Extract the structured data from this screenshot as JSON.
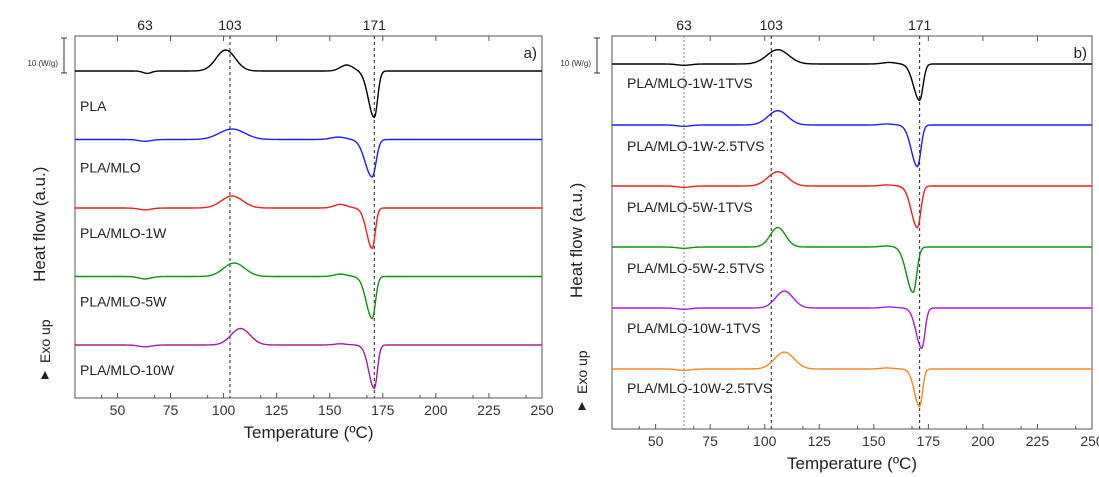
{
  "chart_data": [
    {
      "type": "line",
      "panel_tag": "a)",
      "xlabel": "Temperature (ºC)",
      "ylabel": "Heat flow (a.u.)",
      "exo_label": "Exo up",
      "scale_label": "10 (W/g)",
      "xlim": [
        30,
        250
      ],
      "xticks": [
        50,
        75,
        100,
        125,
        150,
        175,
        200,
        225,
        250
      ],
      "reference_lines": [
        {
          "label": "63",
          "x": 63,
          "dashed": false
        },
        {
          "label": "103",
          "x": 103,
          "dashed": true
        },
        {
          "label": "171",
          "x": 171,
          "dashed": true
        }
      ],
      "series": [
        {
          "name": "PLA",
          "color": "#000000",
          "baseline": 0,
          "features": [
            {
              "type": "dip",
              "x": 64,
              "height": -0.08,
              "width": 2
            },
            {
              "type": "peak",
              "x": 101,
              "height": 0.7,
              "width": 4.5
            },
            {
              "type": "peak",
              "x": 158,
              "height": 0.2,
              "width": 3
            },
            {
              "type": "dip",
              "x": 171,
              "height": -1.55,
              "width": 2.8
            }
          ]
        },
        {
          "name": "PLA/MLO",
          "color": "#1f1fef",
          "baseline": 0,
          "features": [
            {
              "type": "dip",
              "x": 63,
              "height": -0.06,
              "width": 3
            },
            {
              "type": "peak",
              "x": 104,
              "height": 0.35,
              "width": 6
            },
            {
              "type": "peak",
              "x": 154,
              "height": 0.08,
              "width": 3.5
            },
            {
              "type": "dip",
              "x": 170,
              "height": -1.25,
              "width": 3.3
            }
          ]
        },
        {
          "name": "PLA/MLO-1W",
          "color": "#ef1f1f",
          "baseline": 0,
          "features": [
            {
              "type": "dip",
              "x": 63,
              "height": -0.06,
              "width": 3
            },
            {
              "type": "peak",
              "x": 104,
              "height": 0.4,
              "width": 5
            },
            {
              "type": "peak",
              "x": 155,
              "height": 0.12,
              "width": 3
            },
            {
              "type": "dip",
              "x": 170,
              "height": -1.35,
              "width": 2.6
            }
          ]
        },
        {
          "name": "PLA/MLO-5W",
          "color": "#109010",
          "baseline": 0,
          "features": [
            {
              "type": "dip",
              "x": 63,
              "height": -0.08,
              "width": 3
            },
            {
              "type": "peak",
              "x": 105,
              "height": 0.45,
              "width": 5
            },
            {
              "type": "peak",
              "x": 155,
              "height": 0.08,
              "width": 3
            },
            {
              "type": "dip",
              "x": 170,
              "height": -1.4,
              "width": 2.8
            }
          ]
        },
        {
          "name": "PLA/MLO-10W",
          "color": "#a020a0",
          "baseline": 0,
          "features": [
            {
              "type": "dip",
              "x": 63,
              "height": -0.06,
              "width": 3
            },
            {
              "type": "peak",
              "x": 108,
              "height": 0.55,
              "width": 4.5
            },
            {
              "type": "peak",
              "x": 155,
              "height": 0.04,
              "width": 3
            },
            {
              "type": "dip",
              "x": 171,
              "height": -1.45,
              "width": 2.6
            }
          ]
        }
      ]
    },
    {
      "type": "line",
      "panel_tag": "b)",
      "xlabel": "Temperature (ºC)",
      "ylabel": "Heat flow (a.u.)",
      "exo_label": "Exo up",
      "scale_label": "10 (W/g)",
      "xlim": [
        30,
        250
      ],
      "xticks": [
        50,
        75,
        100,
        125,
        150,
        175,
        200,
        225,
        250
      ],
      "reference_lines": [
        {
          "label": "63",
          "x": 63,
          "dashed": true
        },
        {
          "label": "103",
          "x": 103,
          "dashed": true
        },
        {
          "label": "171",
          "x": 171,
          "dashed": true
        }
      ],
      "series": [
        {
          "name": "PLA/MLO-1W-1TVS",
          "color": "#000000",
          "baseline": 0,
          "features": [
            {
              "type": "dip",
              "x": 63,
              "height": -0.05,
              "width": 3
            },
            {
              "type": "peak",
              "x": 106,
              "height": 0.55,
              "width": 5
            },
            {
              "type": "peak",
              "x": 157,
              "height": 0.06,
              "width": 3
            },
            {
              "type": "dip",
              "x": 171,
              "height": -1.4,
              "width": 2.8
            }
          ]
        },
        {
          "name": "PLA/MLO-1W-2.5TVS",
          "color": "#1f1fef",
          "baseline": 0,
          "features": [
            {
              "type": "dip",
              "x": 63,
              "height": -0.05,
              "width": 3
            },
            {
              "type": "peak",
              "x": 106,
              "height": 0.55,
              "width": 4.5
            },
            {
              "type": "peak",
              "x": 156,
              "height": 0.04,
              "width": 3
            },
            {
              "type": "dip",
              "x": 170,
              "height": -1.6,
              "width": 2.8
            }
          ]
        },
        {
          "name": "PLA/MLO-5W-1TVS",
          "color": "#ef1f1f",
          "baseline": 0,
          "features": [
            {
              "type": "dip",
              "x": 63,
              "height": -0.05,
              "width": 3
            },
            {
              "type": "peak",
              "x": 106,
              "height": 0.55,
              "width": 4.5
            },
            {
              "type": "peak",
              "x": 156,
              "height": 0.04,
              "width": 3
            },
            {
              "type": "dip",
              "x": 170,
              "height": -1.6,
              "width": 2.8
            }
          ]
        },
        {
          "name": "PLA/MLO-5W-2.5TVS",
          "color": "#109010",
          "baseline": 0,
          "features": [
            {
              "type": "dip",
              "x": 63,
              "height": -0.05,
              "width": 3
            },
            {
              "type": "peak",
              "x": 106,
              "height": 0.75,
              "width": 3.5
            },
            {
              "type": "peak",
              "x": 156,
              "height": 0.04,
              "width": 3
            },
            {
              "type": "dip",
              "x": 168,
              "height": -1.75,
              "width": 3
            }
          ]
        },
        {
          "name": "PLA/MLO-10W-1TVS",
          "color": "#a020e0",
          "baseline": 0,
          "features": [
            {
              "type": "dip",
              "x": 63,
              "height": -0.05,
              "width": 3
            },
            {
              "type": "peak",
              "x": 109,
              "height": 0.65,
              "width": 4
            },
            {
              "type": "peak",
              "x": 157,
              "height": 0.04,
              "width": 3
            },
            {
              "type": "dip",
              "x": 172,
              "height": -1.55,
              "width": 2.6
            }
          ]
        },
        {
          "name": "PLA/MLO-10W-2.5TVS",
          "color": "#f08a20",
          "baseline": 0,
          "features": [
            {
              "type": "dip",
              "x": 63,
              "height": -0.05,
              "width": 3
            },
            {
              "type": "peak",
              "x": 109,
              "height": 0.65,
              "width": 4.5
            },
            {
              "type": "peak",
              "x": 156,
              "height": 0.04,
              "width": 3
            },
            {
              "type": "dip",
              "x": 171,
              "height": -1.45,
              "width": 2.4
            }
          ]
        }
      ]
    }
  ]
}
